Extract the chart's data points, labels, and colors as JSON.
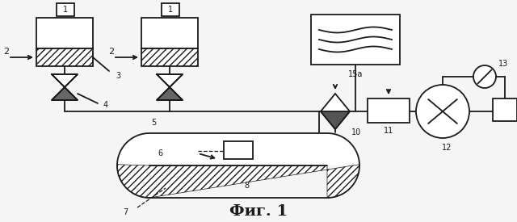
{
  "title": "Фиг. 1",
  "bg_color": "#f5f5f5",
  "line_color": "#1a1a1a",
  "fig_width": 6.4,
  "fig_height": 2.75,
  "dpi": 100
}
